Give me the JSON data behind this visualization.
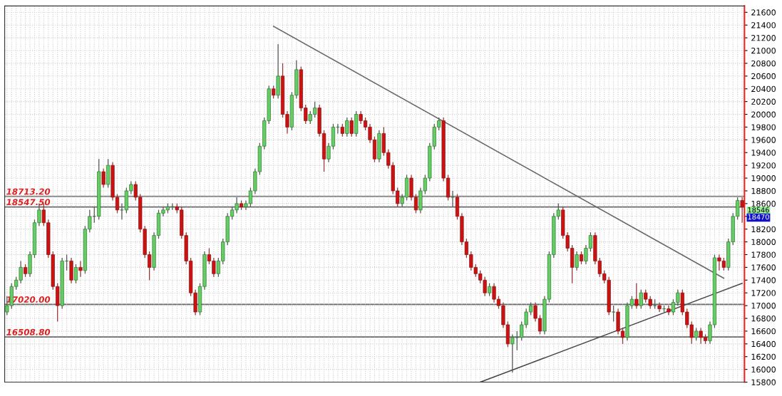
{
  "chart_data": {
    "type": "candlestick",
    "categories": [
      null,
      null,
      null,
      null,
      null,
      null,
      null,
      null,
      null,
      null,
      null,
      null,
      null,
      null,
      null,
      null,
      null,
      null,
      null,
      null,
      null,
      null,
      null,
      null,
      null,
      null,
      null,
      null,
      null,
      null,
      null,
      null,
      null,
      null,
      null,
      null,
      null,
      null,
      null,
      null,
      null,
      null,
      null,
      null,
      null,
      null,
      null,
      null,
      null,
      null,
      null,
      null,
      null,
      null,
      null,
      null,
      null,
      null,
      null,
      null,
      null,
      null,
      null,
      null,
      null,
      null,
      null,
      null,
      null,
      null,
      null,
      null,
      null,
      null,
      null,
      null,
      null,
      null,
      null,
      null,
      null,
      null,
      null,
      null,
      null,
      null,
      null,
      null,
      null,
      null,
      null,
      null,
      null,
      null,
      null,
      null,
      null,
      null,
      null,
      null,
      null,
      null,
      null,
      null,
      null,
      null,
      null,
      null,
      null,
      null,
      null,
      null,
      null,
      null,
      null,
      null,
      null,
      null,
      null,
      null,
      null,
      null,
      null,
      null,
      null,
      null,
      null,
      null,
      null,
      null,
      null,
      null,
      null,
      null,
      null,
      null,
      null,
      null,
      null,
      null,
      null,
      null,
      null,
      null,
      null,
      null,
      null,
      null,
      null,
      null,
      null,
      null,
      null,
      null,
      null,
      null,
      null,
      null,
      null,
      null,
      null
    ],
    "ohlc": [
      [
        16900,
        17150,
        16850,
        17000
      ],
      [
        17000,
        17350,
        16950,
        17300
      ],
      [
        17300,
        17450,
        17250,
        17400
      ],
      [
        17400,
        17700,
        17350,
        17600
      ],
      [
        17600,
        17650,
        17450,
        17500
      ],
      [
        17500,
        17850,
        17450,
        17800
      ],
      [
        17800,
        18350,
        17750,
        18300
      ],
      [
        18300,
        18600,
        18250,
        18500
      ],
      [
        18500,
        18600,
        18250,
        18300
      ],
      [
        18300,
        18350,
        17750,
        17800
      ],
      [
        17800,
        17850,
        17250,
        17300
      ],
      [
        17300,
        17350,
        16750,
        17000
      ],
      [
        17000,
        17750,
        16950,
        17700
      ],
      [
        17700,
        17800,
        17550,
        17700
      ],
      [
        17700,
        17750,
        17350,
        17400
      ],
      [
        17400,
        17650,
        17350,
        17600
      ],
      [
        17600,
        17700,
        17450,
        17550
      ],
      [
        17550,
        18250,
        17500,
        18200
      ],
      [
        18200,
        18500,
        18150,
        18400
      ],
      [
        18400,
        18550,
        18300,
        18400
      ],
      [
        18400,
        19300,
        18350,
        19100
      ],
      [
        19100,
        19150,
        18850,
        18900
      ],
      [
        18900,
        19300,
        18850,
        19200
      ],
      [
        19200,
        19250,
        18650,
        18700
      ],
      [
        18700,
        18750,
        18450,
        18500
      ],
      [
        18500,
        18600,
        18350,
        18500
      ],
      [
        18500,
        18850,
        18450,
        18800
      ],
      [
        18800,
        18950,
        18750,
        18900
      ],
      [
        18900,
        18950,
        18650,
        18700
      ],
      [
        18700,
        18750,
        18150,
        18200
      ],
      [
        18200,
        18250,
        17750,
        17800
      ],
      [
        17800,
        17850,
        17400,
        17600
      ],
      [
        17600,
        18150,
        17550,
        18100
      ],
      [
        18100,
        18500,
        18050,
        18450
      ],
      [
        18450,
        18550,
        18400,
        18500
      ],
      [
        18500,
        18600,
        18450,
        18550
      ],
      [
        18550,
        18600,
        18500,
        18550
      ],
      [
        18550,
        18600,
        18450,
        18500
      ],
      [
        18500,
        18550,
        18050,
        18100
      ],
      [
        18100,
        18150,
        17650,
        17700
      ],
      [
        17700,
        17750,
        17150,
        17200
      ],
      [
        17200,
        17250,
        16850,
        16900
      ],
      [
        16900,
        17350,
        16850,
        17300
      ],
      [
        17300,
        17850,
        17250,
        17800
      ],
      [
        17800,
        17900,
        17650,
        17700
      ],
      [
        17700,
        17750,
        17450,
        17500
      ],
      [
        17500,
        17750,
        17450,
        17700
      ],
      [
        17700,
        18050,
        17650,
        18000
      ],
      [
        18000,
        18450,
        17950,
        18400
      ],
      [
        18400,
        18550,
        18350,
        18500
      ],
      [
        18500,
        18700,
        18450,
        18600
      ],
      [
        18600,
        18650,
        18500,
        18550
      ],
      [
        18550,
        18650,
        18500,
        18600
      ],
      [
        18600,
        18850,
        18550,
        18800
      ],
      [
        18800,
        19150,
        18750,
        19100
      ],
      [
        19100,
        19550,
        19050,
        19500
      ],
      [
        19500,
        19950,
        19450,
        19900
      ],
      [
        19900,
        20450,
        19850,
        20400
      ],
      [
        20400,
        20450,
        20250,
        20300
      ],
      [
        20300,
        21100,
        20250,
        20600
      ],
      [
        20600,
        20800,
        19950,
        20000
      ],
      [
        20000,
        20050,
        19700,
        19800
      ],
      [
        19800,
        20350,
        19750,
        20300
      ],
      [
        20300,
        20850,
        20250,
        20700
      ],
      [
        20700,
        20750,
        20050,
        20100
      ],
      [
        20100,
        20150,
        19850,
        19900
      ],
      [
        19900,
        20050,
        19850,
        20000
      ],
      [
        20000,
        20200,
        19950,
        20100
      ],
      [
        20100,
        20150,
        19650,
        19700
      ],
      [
        19700,
        19750,
        19100,
        19300
      ],
      [
        19300,
        19550,
        19250,
        19500
      ],
      [
        19500,
        19850,
        19450,
        19800
      ],
      [
        19800,
        19850,
        19700,
        19800
      ],
      [
        19800,
        19850,
        19650,
        19700
      ],
      [
        19700,
        19950,
        19650,
        19900
      ],
      [
        19900,
        19950,
        19650,
        19700
      ],
      [
        19700,
        20050,
        19650,
        20000
      ],
      [
        20000,
        20050,
        19850,
        19900
      ],
      [
        19900,
        19950,
        19750,
        19800
      ],
      [
        19800,
        19850,
        19550,
        19600
      ],
      [
        19600,
        19650,
        19250,
        19300
      ],
      [
        19300,
        19750,
        19250,
        19700
      ],
      [
        19700,
        19800,
        19350,
        19400
      ],
      [
        19400,
        19450,
        19150,
        19200
      ],
      [
        19200,
        19250,
        18750,
        18800
      ],
      [
        18800,
        18850,
        18550,
        18600
      ],
      [
        18600,
        18750,
        18550,
        18700
      ],
      [
        18700,
        19050,
        18650,
        19000
      ],
      [
        19000,
        19050,
        18650,
        18700
      ],
      [
        18700,
        18750,
        18450,
        18500
      ],
      [
        18500,
        18850,
        18450,
        18800
      ],
      [
        18800,
        19050,
        18750,
        19000
      ],
      [
        19000,
        19550,
        18950,
        19500
      ],
      [
        19500,
        19850,
        19450,
        19800
      ],
      [
        19800,
        19950,
        19750,
        19900
      ],
      [
        19900,
        19950,
        18950,
        19000
      ],
      [
        19000,
        19050,
        18650,
        18700
      ],
      [
        18700,
        18800,
        18550,
        18700
      ],
      [
        18700,
        18750,
        18350,
        18400
      ],
      [
        18400,
        18450,
        17950,
        18000
      ],
      [
        18000,
        18050,
        17750,
        17800
      ],
      [
        17800,
        17850,
        17550,
        17600
      ],
      [
        17600,
        17650,
        17450,
        17500
      ],
      [
        17500,
        17550,
        17350,
        17400
      ],
      [
        17400,
        17450,
        17150,
        17200
      ],
      [
        17200,
        17350,
        17150,
        17300
      ],
      [
        17300,
        17350,
        17050,
        17100
      ],
      [
        17100,
        17150,
        16950,
        17000
      ],
      [
        17000,
        17050,
        16650,
        16700
      ],
      [
        16700,
        16750,
        16350,
        16400
      ],
      [
        16400,
        16550,
        15950,
        16500
      ],
      [
        16500,
        16600,
        16300,
        16500
      ],
      [
        16500,
        16750,
        16450,
        16700
      ],
      [
        16700,
        16950,
        16650,
        16900
      ],
      [
        16900,
        17050,
        16850,
        17000
      ],
      [
        17000,
        17050,
        16750,
        16800
      ],
      [
        16800,
        16850,
        16550,
        16600
      ],
      [
        16600,
        17150,
        16550,
        17100
      ],
      [
        17100,
        17850,
        17050,
        17800
      ],
      [
        17800,
        18450,
        17750,
        18400
      ],
      [
        18400,
        18600,
        18350,
        18500
      ],
      [
        18500,
        18550,
        18050,
        18100
      ],
      [
        18100,
        18150,
        17850,
        17900
      ],
      [
        17900,
        17950,
        17350,
        17600
      ],
      [
        17600,
        17850,
        17550,
        17800
      ],
      [
        17800,
        17850,
        17650,
        17700
      ],
      [
        17700,
        17950,
        17650,
        17900
      ],
      [
        17900,
        18150,
        17850,
        18100
      ],
      [
        18100,
        18150,
        17650,
        17700
      ],
      [
        17700,
        17750,
        17450,
        17500
      ],
      [
        17500,
        17550,
        17350,
        17400
      ],
      [
        17400,
        17450,
        16850,
        16900
      ],
      [
        16900,
        17000,
        16750,
        16900
      ],
      [
        16900,
        16950,
        16550,
        16600
      ],
      [
        16600,
        16650,
        16400,
        16500
      ],
      [
        16500,
        17050,
        16450,
        17000
      ],
      [
        17000,
        17150,
        16950,
        17100
      ],
      [
        17100,
        17350,
        16950,
        17000
      ],
      [
        17000,
        17250,
        16950,
        17200
      ],
      [
        17200,
        17250,
        17050,
        17100
      ],
      [
        17100,
        17150,
        16950,
        17000
      ],
      [
        17000,
        17100,
        16950,
        17000
      ],
      [
        17000,
        17050,
        16900,
        16950
      ],
      [
        16950,
        17000,
        16900,
        16950
      ],
      [
        16950,
        17000,
        16850,
        16900
      ],
      [
        16900,
        17100,
        16850,
        17050
      ],
      [
        17050,
        17250,
        17000,
        17200
      ],
      [
        17200,
        17250,
        16850,
        16900
      ],
      [
        16900,
        16950,
        16650,
        16700
      ],
      [
        16700,
        16750,
        16400,
        16500
      ],
      [
        16500,
        16650,
        16450,
        16600
      ],
      [
        16600,
        16650,
        16400,
        16500
      ],
      [
        16500,
        16550,
        16400,
        16450
      ],
      [
        16450,
        16750,
        16400,
        16700
      ],
      [
        16700,
        17800,
        16650,
        17750
      ],
      [
        17750,
        17800,
        17550,
        17700
      ],
      [
        17700,
        17750,
        17550,
        17600
      ],
      [
        17600,
        18050,
        17550,
        18000
      ],
      [
        18000,
        18450,
        17950,
        18400
      ],
      [
        18400,
        18700,
        18350,
        18650
      ],
      [
        18650,
        18700,
        18300,
        18546
      ]
    ],
    "series": [
      {
        "type": "line",
        "color": "#666666",
        "values": [
          null,
          null,
          null,
          null,
          null,
          null,
          null,
          null,
          null,
          null,
          null,
          null,
          null,
          null,
          null,
          null,
          null,
          null,
          null,
          null,
          null,
          null,
          null,
          null,
          null,
          null,
          null,
          null,
          null,
          null,
          null,
          null,
          null,
          null,
          null,
          null,
          null,
          null,
          null,
          null,
          null,
          null,
          null,
          null,
          null,
          null,
          null,
          null,
          null,
          null,
          null,
          null,
          null,
          null,
          null,
          null,
          null,
          null,
          21380,
          null,
          null,
          null,
          null,
          null,
          null,
          null,
          null,
          null,
          null,
          null,
          null,
          null,
          null,
          null,
          null,
          null,
          null,
          null,
          null,
          null,
          null,
          null,
          null,
          null,
          null,
          null,
          null,
          null,
          null,
          null,
          null,
          null,
          null,
          null,
          null,
          null,
          null,
          null,
          null,
          null,
          null,
          null,
          null,
          null,
          null,
          null,
          null,
          null,
          null,
          null,
          null,
          null,
          null,
          null,
          null,
          null,
          null,
          null,
          null,
          null,
          null,
          null,
          null,
          null,
          null,
          null,
          null,
          null,
          null,
          null,
          null,
          null,
          null,
          null,
          null,
          null,
          null,
          null,
          null,
          null,
          null,
          null,
          null,
          null,
          null,
          null,
          null,
          null,
          null,
          null,
          null,
          null,
          null,
          null,
          null,
          null,
          17430,
          null,
          null,
          null,
          null
        ]
      },
      {
        "type": "line",
        "color": "#444444",
        "values": [
          null,
          null,
          null,
          null,
          null,
          null,
          null,
          null,
          null,
          null,
          null,
          null,
          null,
          null,
          null,
          null,
          null,
          null,
          null,
          null,
          null,
          null,
          null,
          null,
          null,
          null,
          null,
          null,
          null,
          null,
          null,
          null,
          null,
          null,
          null,
          null,
          null,
          null,
          null,
          null,
          null,
          null,
          null,
          null,
          null,
          null,
          null,
          null,
          null,
          null,
          null,
          null,
          null,
          null,
          null,
          null,
          null,
          null,
          null,
          null,
          null,
          null,
          null,
          null,
          null,
          null,
          null,
          null,
          null,
          null,
          null,
          null,
          null,
          null,
          null,
          null,
          null,
          null,
          null,
          null,
          null,
          null,
          null,
          null,
          null,
          null,
          null,
          null,
          null,
          null,
          null,
          null,
          null,
          null,
          null,
          null,
          null,
          null,
          null,
          null,
          null,
          null,
          null,
          15800,
          null,
          null,
          null,
          null,
          null,
          null,
          null,
          null,
          null,
          null,
          null,
          null,
          null,
          null,
          null,
          null,
          null,
          null,
          null,
          null,
          null,
          null,
          null,
          null,
          null,
          null,
          null,
          null,
          null,
          null,
          null,
          null,
          null,
          null,
          null,
          null,
          null,
          null,
          null,
          null,
          null,
          null,
          null,
          null,
          null,
          null,
          null,
          null,
          null,
          null,
          null,
          null,
          null,
          null,
          null,
          null,
          17350
        ]
      }
    ],
    "ylim": [
      15800,
      21700
    ],
    "yticks": [
      15800,
      16000,
      16200,
      16400,
      16600,
      16800,
      17000,
      17200,
      17400,
      17600,
      17800,
      18000,
      18200,
      {
        "value": 18400,
        "label": null
      },
      18600,
      18800,
      19000,
      19200,
      19400,
      19600,
      19800,
      20000,
      20200,
      20400,
      20600,
      20800,
      21000,
      21200,
      21400,
      21600
    ],
    "ref_lines": [
      {
        "axis": "y",
        "value": 18713.2,
        "label": "18713.20",
        "color": "#888888"
      },
      {
        "axis": "y",
        "value": 18547.5,
        "label": "18547.50",
        "color": "#666666"
      },
      {
        "axis": "y",
        "value": 17020.0,
        "label": "17020.00",
        "color": "#666666"
      },
      {
        "axis": "y",
        "value": 16508.8,
        "label": "16508.80",
        "color": "#666666"
      }
    ],
    "annotations": [
      "18546",
      "18470"
    ],
    "grid": true,
    "tick_labels": "y"
  }
}
